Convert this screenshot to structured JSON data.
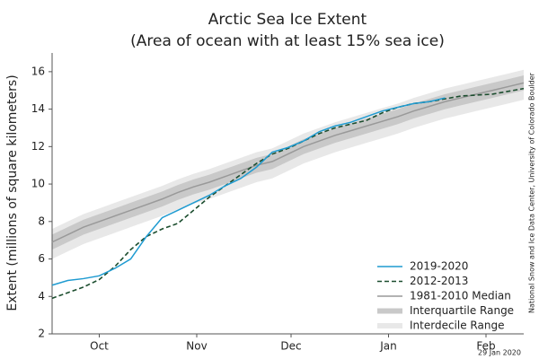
{
  "chart_data": {
    "type": "line",
    "title": "Arctic Sea Ice Extent",
    "subtitle": "(Area of ocean with at least 15% sea ice)",
    "y_label": "Extent (millions of square kilometers)",
    "credit": "National Snow and Ice Data Center, University of Colorado Boulder",
    "date_note": "29 Jan 2020",
    "x": [
      0,
      5,
      10,
      15,
      20,
      25,
      30,
      35,
      40,
      45,
      50,
      55,
      60,
      65,
      70,
      75,
      80,
      85,
      90,
      95,
      100,
      105,
      110,
      115,
      120,
      125,
      130,
      135,
      140,
      145,
      150
    ],
    "xlim": [
      0,
      150
    ],
    "xticks": [
      {
        "value": 15,
        "label": "Oct"
      },
      {
        "value": 46,
        "label": "Nov"
      },
      {
        "value": 76,
        "label": "Dec"
      },
      {
        "value": 107,
        "label": "Jan"
      },
      {
        "value": 138,
        "label": "Feb"
      }
    ],
    "ylim": [
      2,
      17
    ],
    "yticks": [
      2,
      4,
      6,
      8,
      10,
      12,
      14,
      16
    ],
    "legend": "lower right",
    "bands": [
      {
        "name": "Interdecile Range",
        "color": "#e8e8e8",
        "lower": [
          6.0,
          6.4,
          6.8,
          7.1,
          7.4,
          7.7,
          8.0,
          8.3,
          8.65,
          8.95,
          9.2,
          9.5,
          9.8,
          10.1,
          10.3,
          10.7,
          11.1,
          11.4,
          11.7,
          11.95,
          12.2,
          12.45,
          12.7,
          13.0,
          13.25,
          13.5,
          13.7,
          13.9,
          14.1,
          14.3,
          14.5
        ],
        "upper": [
          7.6,
          8.0,
          8.4,
          8.7,
          9.0,
          9.3,
          9.6,
          9.9,
          10.25,
          10.55,
          10.8,
          11.1,
          11.4,
          11.7,
          11.9,
          12.3,
          12.7,
          13.0,
          13.3,
          13.55,
          13.8,
          14.05,
          14.3,
          14.6,
          14.85,
          15.1,
          15.3,
          15.5,
          15.7,
          15.9,
          16.1
        ]
      },
      {
        "name": "Interquartile Range",
        "color": "#c9c9c9",
        "lower": [
          6.5,
          6.9,
          7.3,
          7.6,
          7.9,
          8.2,
          8.5,
          8.8,
          9.15,
          9.45,
          9.7,
          10.0,
          10.3,
          10.6,
          10.8,
          11.2,
          11.6,
          11.9,
          12.2,
          12.45,
          12.7,
          12.95,
          13.2,
          13.5,
          13.75,
          14.0,
          14.2,
          14.4,
          14.6,
          14.8,
          15.0
        ],
        "upper": [
          7.3,
          7.7,
          8.1,
          8.4,
          8.7,
          9.0,
          9.3,
          9.6,
          9.95,
          10.25,
          10.5,
          10.8,
          11.1,
          11.4,
          11.6,
          12.0,
          12.4,
          12.7,
          13.0,
          13.25,
          13.5,
          13.75,
          14.0,
          14.3,
          14.55,
          14.8,
          15.0,
          15.2,
          15.4,
          15.6,
          15.8
        ]
      }
    ],
    "series": [
      {
        "name": "1981-2010 Median",
        "color": "#999999",
        "dash": false,
        "values": [
          6.9,
          7.3,
          7.7,
          8.0,
          8.3,
          8.6,
          8.9,
          9.2,
          9.55,
          9.85,
          10.1,
          10.4,
          10.7,
          11.0,
          11.2,
          11.6,
          12.0,
          12.3,
          12.6,
          12.85,
          13.1,
          13.35,
          13.6,
          13.9,
          14.15,
          14.4,
          14.6,
          14.8,
          15.0,
          15.2,
          15.4
        ]
      },
      {
        "name": "2012-2013",
        "color": "#1b4d2e",
        "dash": true,
        "values": [
          3.9,
          4.2,
          4.5,
          4.9,
          5.6,
          6.5,
          7.2,
          7.6,
          7.9,
          8.6,
          9.3,
          9.9,
          10.5,
          11.1,
          11.6,
          11.9,
          12.3,
          12.7,
          13.0,
          13.2,
          13.4,
          13.8,
          14.1,
          14.3,
          14.4,
          14.55,
          14.7,
          14.75,
          14.8,
          14.95,
          15.1
        ]
      },
      {
        "name": "2019-2020",
        "color": "#1f9bd1",
        "dash": false,
        "values": [
          4.6,
          4.85,
          4.95,
          5.1,
          5.5,
          6.0,
          7.2,
          8.2,
          8.6,
          9.0,
          9.4,
          9.9,
          10.3,
          10.9,
          11.7,
          11.95,
          12.3,
          12.8,
          13.1,
          13.3,
          13.6,
          13.9,
          14.1,
          14.3,
          14.4,
          14.6,
          null,
          null,
          null,
          null,
          null
        ]
      }
    ],
    "legend_order": [
      "2019-2020",
      "2012-2013",
      "1981-2010 Median",
      "Interquartile Range",
      "Interdecile Range"
    ]
  }
}
